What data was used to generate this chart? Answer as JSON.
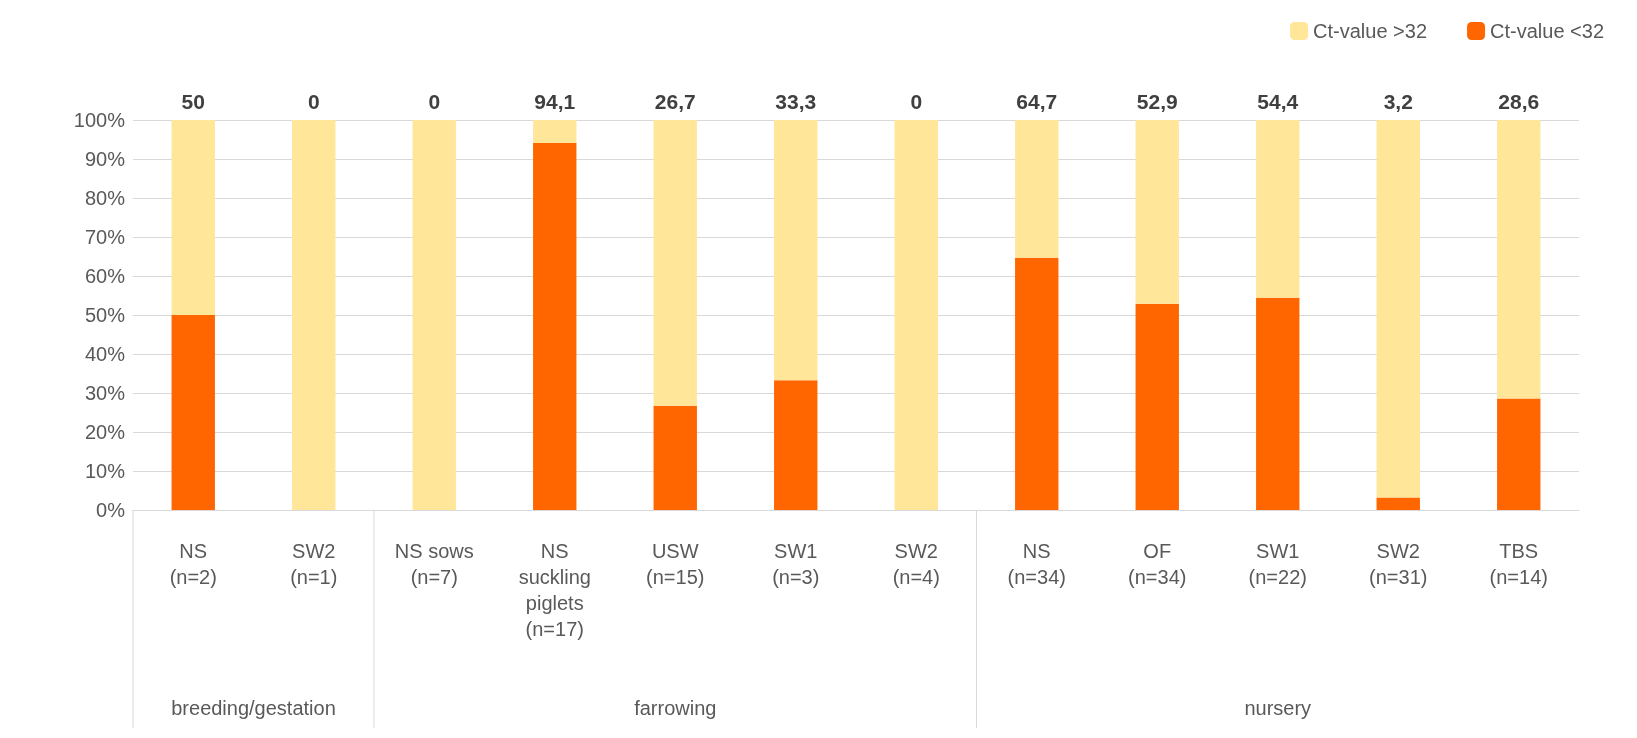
{
  "chart_data": {
    "type": "bar",
    "stacked": true,
    "categories": [
      "NS\n(n=2)",
      "SW2\n(n=1)",
      "NS sows\n(n=7)",
      "NS\nsuckling\npiglets\n(n=17)",
      "USW\n(n=15)",
      "SW1\n(n=3)",
      "SW2\n(n=4)",
      "NS\n(n=34)",
      "OF\n(n=34)",
      "SW1\n(n=22)",
      "SW2\n(n=31)",
      "TBS\n(n=14)"
    ],
    "series": [
      {
        "name": "Ct-value <32",
        "color": "#ff6600",
        "values": [
          50,
          0,
          0,
          94.1,
          26.7,
          33.3,
          0,
          64.7,
          52.9,
          54.4,
          3.2,
          28.6
        ]
      },
      {
        "name": "Ct-value >32",
        "color": "#ffe699",
        "values": [
          50,
          100,
          100,
          5.9,
          73.3,
          66.7,
          100,
          35.3,
          47.1,
          45.6,
          96.8,
          71.4
        ]
      }
    ],
    "ylim": [
      0,
      100
    ],
    "yticks": [
      {
        "value": 0,
        "label": "0%"
      },
      {
        "value": 10,
        "label": "10%"
      },
      {
        "value": 20,
        "label": "20%"
      },
      {
        "value": 30,
        "label": "30%"
      },
      {
        "value": 40,
        "label": "40%"
      },
      {
        "value": 50,
        "label": "50%"
      },
      {
        "value": 60,
        "label": "60%"
      },
      {
        "value": 70,
        "label": "70%"
      },
      {
        "value": 80,
        "label": "80%"
      },
      {
        "value": 90,
        "label": "90%"
      },
      {
        "value": 100,
        "label": "100%"
      }
    ],
    "grid": "y",
    "legend": "top right",
    "annotations": [
      {
        "text": "50",
        "x": "NS\n(n=2)",
        "y": 100
      },
      {
        "text": "0",
        "x": "SW2\n(n=1)",
        "y": 100
      },
      {
        "text": "0",
        "x": "NS sows\n(n=7)",
        "y": 100
      },
      {
        "text": "94,1",
        "x": "NS\nsuckling\npiglets\n(n=17)",
        "y": 100
      },
      {
        "text": "26,7",
        "x": "USW\n(n=15)",
        "y": 100
      },
      {
        "text": "33,3",
        "x": "SW1\n(n=3)",
        "y": 100
      },
      {
        "text": "0",
        "x": "SW2\n(n=4)",
        "y": 100
      },
      {
        "text": "64,7",
        "x": "NS\n(n=34)",
        "y": 100
      },
      {
        "text": "52,9",
        "x": "OF\n(n=34)",
        "y": 100
      },
      {
        "text": "54,4",
        "x": "SW1\n(n=22)",
        "y": 100
      },
      {
        "text": "3,2",
        "x": "SW2\n(n=31)",
        "y": 100
      },
      {
        "text": "28,6",
        "x": "TBS\n(n=14)",
        "y": 100
      },
      "breeding/gestation",
      "farrowing",
      "nursery"
    ]
  }
}
